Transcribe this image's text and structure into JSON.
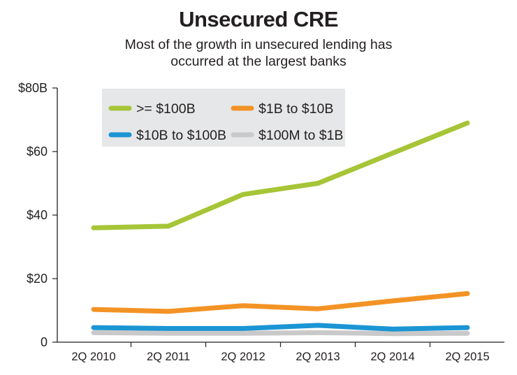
{
  "chart_data": {
    "type": "line",
    "title": "Unsecured CRE",
    "subtitle": "Most of the growth in unsecured lending has occurred at the largest banks",
    "categories": [
      "2Q 2010",
      "2Q 2011",
      "2Q 2012",
      "2Q 2013",
      "2Q 2014",
      "2Q 2015"
    ],
    "y_tick_labels": [
      "0",
      "$20",
      "$40",
      "$60",
      "$80B"
    ],
    "y_ticks": [
      0,
      20,
      40,
      60,
      80
    ],
    "ylim": [
      0,
      80
    ],
    "grid": false,
    "legend_position": "top-left",
    "series": [
      {
        "name": ">= $100B",
        "color": "#a6c537",
        "values": [
          36,
          36.5,
          46.5,
          50,
          59.5,
          69
        ]
      },
      {
        "name": "$1B to $10B",
        "color": "#f39325",
        "values": [
          10.3,
          9.7,
          11.5,
          10.5,
          13,
          15.3
        ]
      },
      {
        "name": "$10B to $100B",
        "color": "#1b95d4",
        "values": [
          4.6,
          4.3,
          4.3,
          5.3,
          4.1,
          4.6
        ]
      },
      {
        "name": "$100M to $1B",
        "color": "#c9c9c9",
        "values": [
          3,
          2.8,
          2.8,
          3,
          2.7,
          2.8
        ]
      }
    ]
  }
}
